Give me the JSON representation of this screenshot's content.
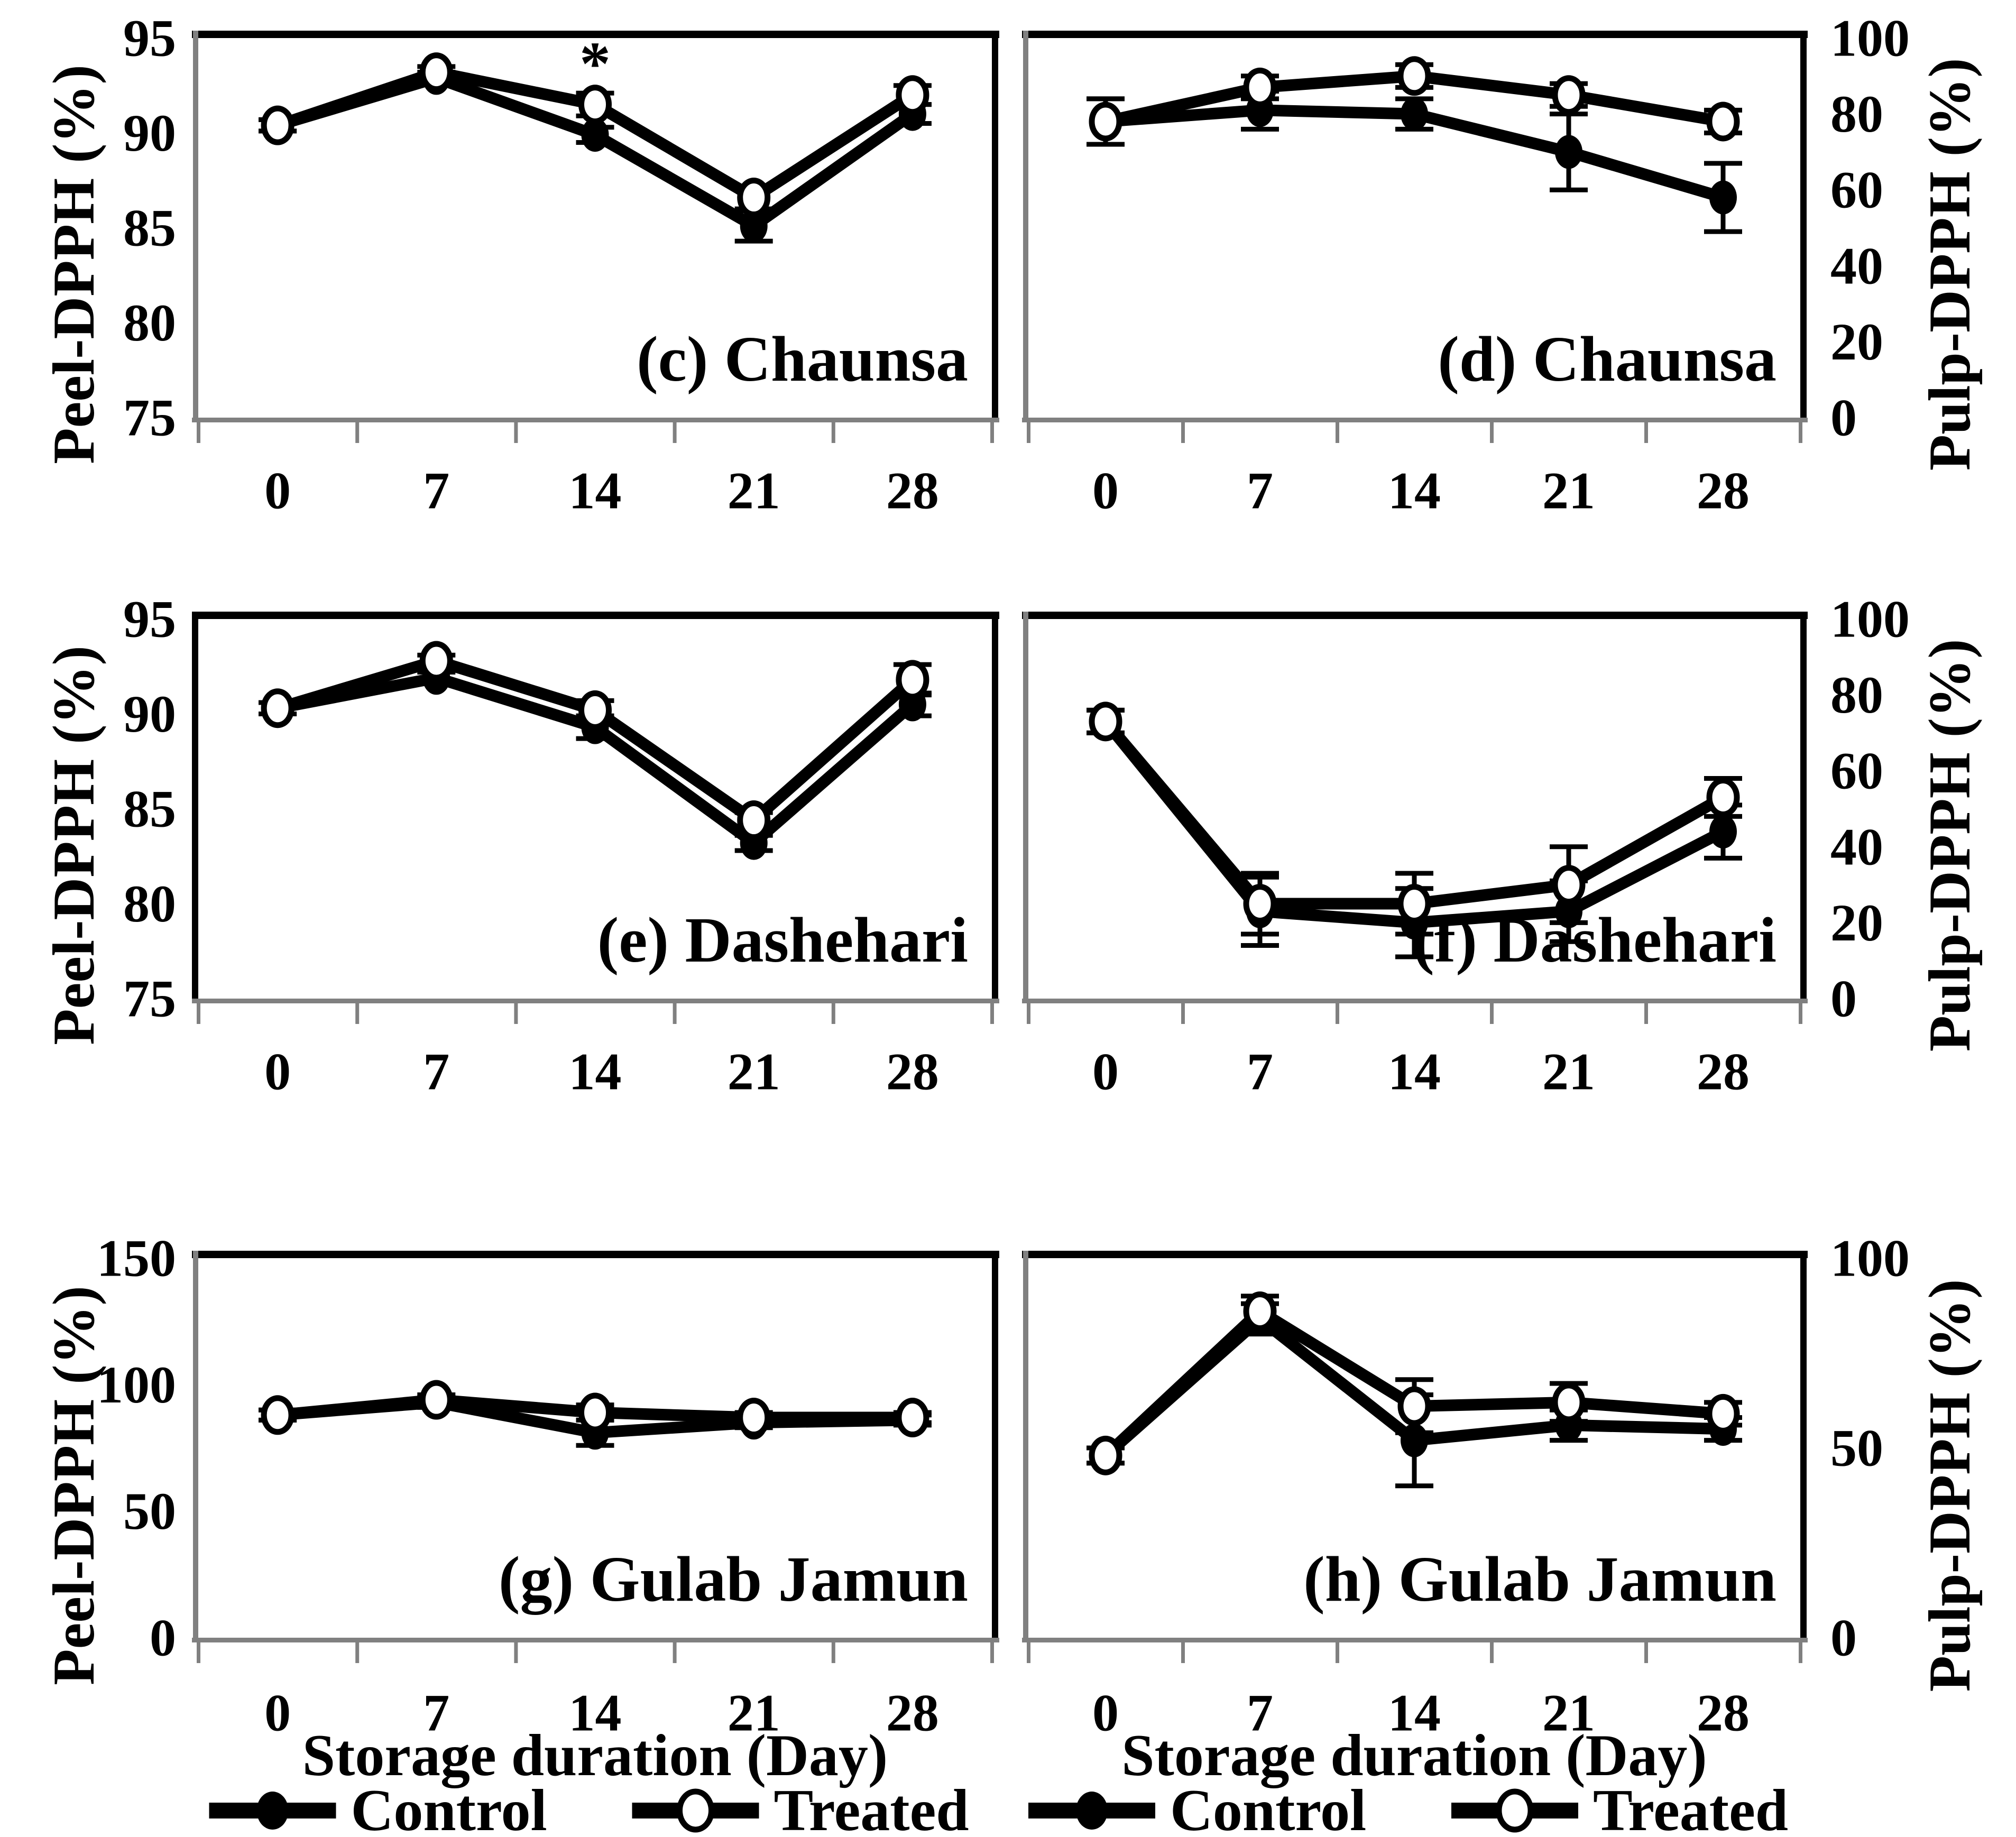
{
  "figure": {
    "background": "#ffffff",
    "axis_color": "#808080",
    "line_color": "#000000",
    "x_axis_title": "Storage duration (Day)",
    "x_tick_labels": [
      "0",
      "7",
      "14",
      "21",
      "28"
    ],
    "legend": [
      {
        "label": "Control",
        "marker": "filled-circle"
      },
      {
        "label": "Treated",
        "marker": "open-circle"
      }
    ]
  },
  "chart_data": [
    {
      "id": "c",
      "type": "line",
      "panel_label": "(c) Chaunsa",
      "variety": "Chaunsa",
      "tissue": "Peel",
      "ylabel": "Peel-DPPH (%)",
      "yaxis_side": "left",
      "ylim": [
        75,
        95
      ],
      "yticks": [
        75,
        80,
        85,
        90,
        95
      ],
      "x": [
        0,
        7,
        14,
        21,
        28
      ],
      "series": [
        {
          "name": "Control",
          "marker": "filled-circle",
          "values": [
            90.4,
            92.9,
            89.9,
            85.1,
            91.0
          ],
          "errors": [
            0.3,
            0.3,
            0.4,
            0.8,
            0.5
          ]
        },
        {
          "name": "Treated",
          "marker": "open-circle",
          "values": [
            90.4,
            93.2,
            91.5,
            86.6,
            92.0
          ],
          "errors": [
            0.3,
            0.3,
            0.6,
            0.6,
            0.5
          ]
        }
      ],
      "annotations": [
        {
          "text": "*",
          "x_index": 2,
          "y": 92.55
        }
      ]
    },
    {
      "id": "d",
      "type": "line",
      "panel_label": "(d) Chaunsa",
      "variety": "Chaunsa",
      "tissue": "Pulp",
      "ylabel": "Pulp-DPPH (%)",
      "yaxis_side": "right",
      "ylim": [
        0,
        100
      ],
      "yticks": [
        0,
        20,
        40,
        60,
        80,
        100
      ],
      "x": [
        0,
        7,
        14,
        21,
        28
      ],
      "series": [
        {
          "name": "Control",
          "marker": "filled-circle",
          "values": [
            78,
            81,
            80,
            70,
            58
          ],
          "errors": [
            6,
            5,
            4,
            10,
            9
          ]
        },
        {
          "name": "Treated",
          "marker": "open-circle",
          "values": [
            78,
            87,
            90,
            85,
            78
          ],
          "errors": [
            6,
            3,
            3,
            3,
            3
          ]
        }
      ],
      "annotations": []
    },
    {
      "id": "e",
      "type": "line",
      "panel_label": "(e) Dashehari",
      "variety": "Dashehari",
      "tissue": "Peel",
      "ylabel": "Peel-DPPH (%)",
      "yaxis_side": "left",
      "ylim": [
        75,
        95
      ],
      "yticks": [
        75,
        80,
        85,
        90,
        95
      ],
      "x": [
        0,
        7,
        14,
        21,
        28
      ],
      "series": [
        {
          "name": "Control",
          "marker": "filled-circle",
          "values": [
            90.3,
            91.9,
            89.3,
            83.2,
            90.5
          ],
          "errors": [
            0.3,
            0.3,
            0.6,
            0.4,
            0.6
          ]
        },
        {
          "name": "Treated",
          "marker": "open-circle",
          "values": [
            90.3,
            92.8,
            90.2,
            84.4,
            91.8
          ],
          "errors": [
            0.3,
            0.3,
            0.5,
            0.4,
            0.8
          ]
        }
      ],
      "annotations": []
    },
    {
      "id": "f",
      "type": "line",
      "panel_label": "(f) Dashehari",
      "variety": "Dashehari",
      "tissue": "Pulp",
      "ylabel": "Pulp-DPPH (%)",
      "yaxis_side": "right",
      "ylim": [
        0,
        100
      ],
      "yticks": [
        0,
        20,
        40,
        60,
        80,
        100
      ],
      "x": [
        0,
        7,
        14,
        21,
        28
      ],
      "series": [
        {
          "name": "Control",
          "marker": "filled-circle",
          "values": [
            73,
            23,
            20,
            23,
            44
          ],
          "errors": [
            3,
            9,
            9,
            8,
            7
          ]
        },
        {
          "name": "Treated",
          "marker": "open-circle",
          "values": [
            73,
            25,
            25,
            30,
            53
          ],
          "errors": [
            3,
            8,
            8,
            10,
            5
          ]
        }
      ],
      "annotations": []
    },
    {
      "id": "g",
      "type": "line",
      "panel_label": "(g) Gulab Jamun",
      "variety": "Gulab Jamun",
      "tissue": "Peel",
      "ylabel": "Peel-DPPH (%)",
      "yaxis_side": "left",
      "ylim": [
        0,
        150
      ],
      "yticks": [
        0,
        50,
        100,
        150
      ],
      "x": [
        0,
        7,
        14,
        21,
        28
      ],
      "series": [
        {
          "name": "Control",
          "marker": "filled-circle",
          "values": [
            88,
            93,
            81,
            85,
            86
          ],
          "errors": [
            2,
            2,
            5,
            2,
            2
          ]
        },
        {
          "name": "Treated",
          "marker": "open-circle",
          "values": [
            88,
            94,
            89,
            87,
            87
          ],
          "errors": [
            2,
            2,
            3,
            2,
            2
          ]
        }
      ],
      "annotations": []
    },
    {
      "id": "h",
      "type": "line",
      "panel_label": "(h) Gulab Jamun",
      "variety": "Gulab Jamun",
      "tissue": "Pulp",
      "ylabel": "Pulp-DPPH (%)",
      "yaxis_side": "right",
      "ylim": [
        0,
        100
      ],
      "yticks": [
        0,
        50,
        100
      ],
      "x": [
        0,
        7,
        14,
        21,
        28
      ],
      "series": [
        {
          "name": "Control",
          "marker": "filled-circle",
          "values": [
            48,
            84,
            52,
            56,
            55
          ],
          "errors": [
            2,
            4,
            12,
            4,
            3
          ]
        },
        {
          "name": "Treated",
          "marker": "open-circle",
          "values": [
            48,
            86,
            61,
            62,
            59
          ],
          "errors": [
            2,
            4,
            7,
            5,
            3
          ]
        }
      ],
      "annotations": []
    }
  ]
}
